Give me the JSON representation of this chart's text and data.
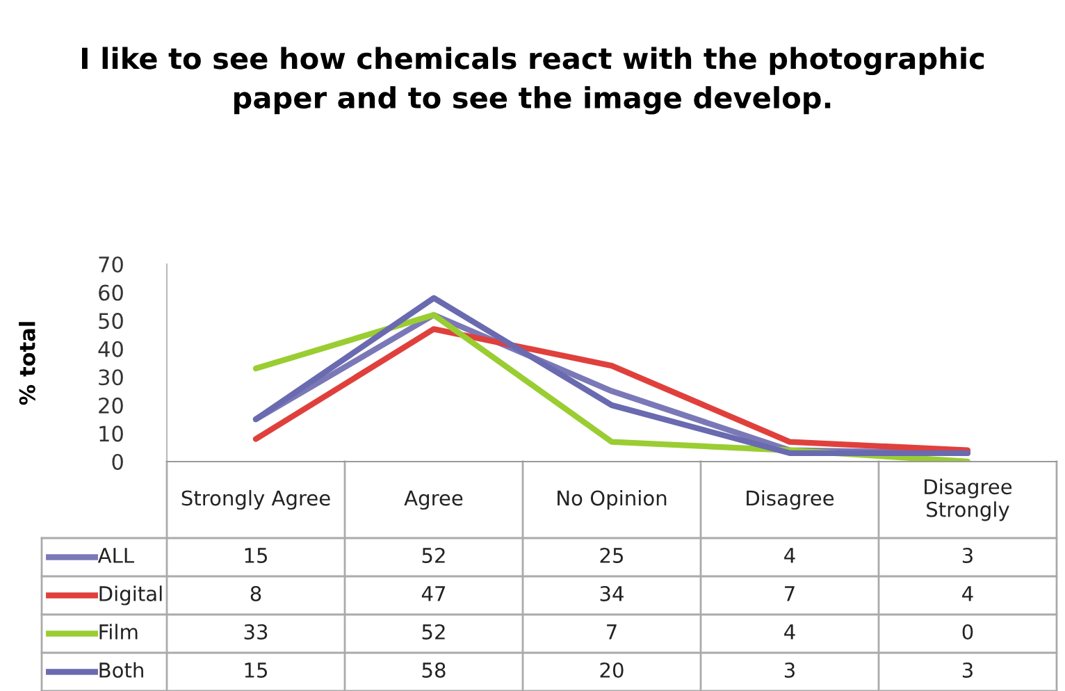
{
  "chart_data": {
    "type": "line",
    "title": "I like to see how chemicals react with the photographic\npaper and to see the image develop.",
    "ylabel": "% total",
    "categories": [
      "Strongly Agree",
      "Agree",
      "No Opinion",
      "Disagree",
      "Disagree Strongly"
    ],
    "series": [
      {
        "name": "ALL",
        "color": "#7b78b8",
        "values": [
          15,
          52,
          25,
          4,
          3
        ]
      },
      {
        "name": "Digital",
        "color": "#e0403c",
        "values": [
          8,
          47,
          34,
          7,
          4
        ]
      },
      {
        "name": "Film",
        "color": "#9acd32",
        "values": [
          33,
          52,
          7,
          4,
          0
        ]
      },
      {
        "name": "Both",
        "color": "#6a6ab0",
        "values": [
          15,
          58,
          20,
          3,
          3
        ]
      }
    ],
    "ylim": [
      0,
      70
    ],
    "yticks": [
      0,
      10,
      20,
      30,
      40,
      50,
      60,
      70
    ],
    "grid": false,
    "legend": "bottom left",
    "data_labels": true,
    "marker": "none",
    "line_style": "solid"
  }
}
